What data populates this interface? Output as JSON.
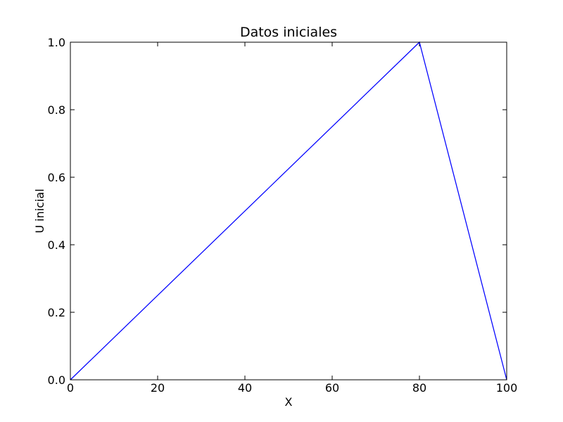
{
  "chart_data": {
    "type": "line",
    "title": "Datos iniciales",
    "xlabel": "X",
    "ylabel": "U inicial",
    "xlim": [
      0,
      100
    ],
    "ylim": [
      0.0,
      1.0
    ],
    "grid": false,
    "x_ticks": [
      0,
      20,
      40,
      60,
      80,
      100
    ],
    "x_tick_labels": [
      "0",
      "20",
      "40",
      "60",
      "80",
      "100"
    ],
    "y_ticks": [
      0.0,
      0.2,
      0.4,
      0.6,
      0.8,
      1.0
    ],
    "y_tick_labels": [
      "0.0",
      "0.2",
      "0.4",
      "0.6",
      "0.8",
      "1.0"
    ],
    "series": [
      {
        "color": "#0000ff",
        "x": [
          0,
          80,
          100
        ],
        "y": [
          0.0,
          1.0,
          0.0
        ]
      }
    ]
  }
}
